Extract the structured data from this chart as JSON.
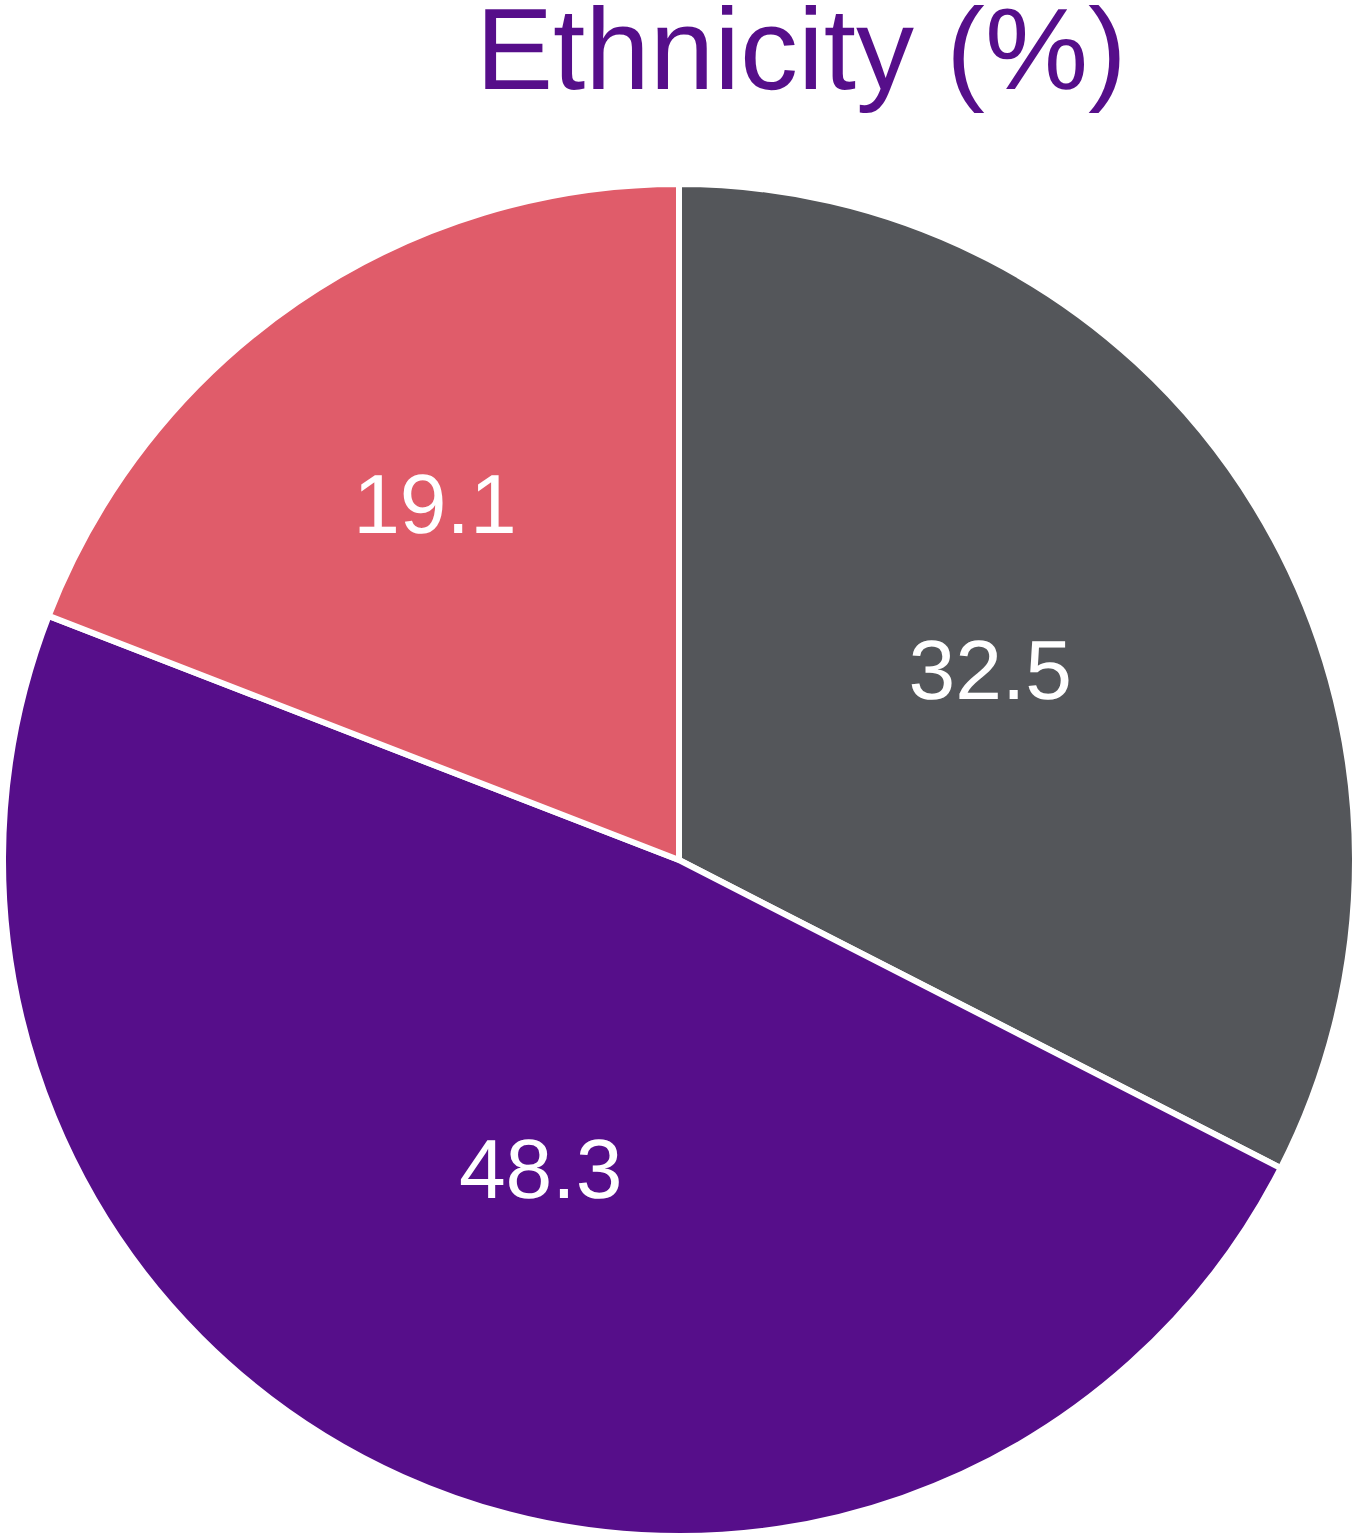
{
  "chart_data": {
    "type": "pie",
    "title": "Ethnicity (%)",
    "categories": [
      null,
      null,
      null
    ],
    "values": [
      32.5,
      48.3,
      19.1
    ],
    "colors": [
      "#54565a",
      "#560e8a",
      "#e05c6a"
    ],
    "data_labels": true,
    "legend": false
  }
}
